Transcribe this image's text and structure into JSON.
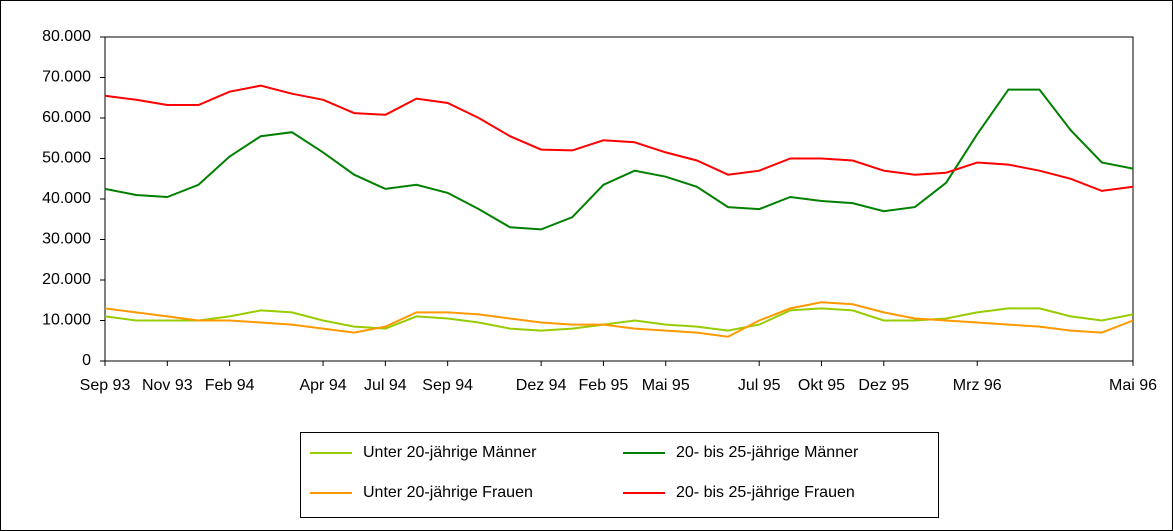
{
  "chart_data": {
    "type": "line",
    "categories": [
      "Sep 93",
      null,
      "Nov 93",
      null,
      "Feb 94",
      null,
      null,
      "Apr 94",
      null,
      "Jul 94",
      null,
      "Sep 94",
      null,
      null,
      "Dez 94",
      null,
      "Feb 95",
      null,
      "Mai 95",
      null,
      null,
      "Jul 95",
      null,
      "Okt 95",
      null,
      "Dez 95",
      null,
      null,
      "Mrz 96",
      null,
      null,
      null,
      null,
      "Mai 96"
    ],
    "ylim": [
      0,
      80000
    ],
    "yticks": [
      0,
      {
        "value": 10000,
        "label": "10.000"
      },
      {
        "value": 20000,
        "label": "20.000"
      },
      {
        "value": 30000,
        "label": "30.000"
      },
      {
        "value": 40000,
        "label": "40.000"
      },
      {
        "value": 50000,
        "label": "50.000"
      },
      {
        "value": 60000,
        "label": "60.000"
      },
      {
        "value": 70000,
        "label": "70.000"
      },
      {
        "value": 80000,
        "label": "80.000"
      }
    ],
    "grid": false,
    "series": [
      {
        "name": "Unter 20-jährige Männer",
        "color": "#99cc00",
        "values": [
          11000,
          10000,
          10000,
          10000,
          11000,
          12500,
          12000,
          10000,
          8500,
          8000,
          11000,
          10500,
          9500,
          8000,
          7500,
          8000,
          9000,
          10000,
          9000,
          8500,
          7500,
          9000,
          12500,
          13000,
          12500,
          10000,
          10000,
          10500,
          12000,
          13000,
          13000,
          11000,
          10000,
          11500
        ]
      },
      {
        "name": "20- bis 25-jährige Männer",
        "color": "#008000",
        "values": [
          42500,
          41000,
          40500,
          43500,
          50500,
          55500,
          56500,
          51500,
          46000,
          42500,
          43500,
          41500,
          37500,
          33000,
          32500,
          35500,
          43500,
          47000,
          45500,
          43000,
          38000,
          37500,
          40500,
          39500,
          39000,
          37000,
          38000,
          44000,
          56000,
          67000,
          67000,
          57000,
          49000,
          47500
        ]
      },
      {
        "name": "Unter 20-jährige Frauen",
        "color": "#ff9900",
        "values": [
          13000,
          12000,
          11000,
          10000,
          10000,
          9500,
          9000,
          8000,
          7000,
          8500,
          12000,
          12000,
          11500,
          10500,
          9500,
          9000,
          9000,
          8000,
          7500,
          7000,
          6000,
          10000,
          13000,
          14500,
          14000,
          12000,
          10500,
          10000,
          9500,
          9000,
          8500,
          7500,
          7000,
          10000
        ]
      },
      {
        "name": "20- bis 25-jährige Frauen",
        "color": "#ff0000",
        "values": [
          65500,
          64500,
          63200,
          63200,
          66500,
          68000,
          66000,
          64500,
          61200,
          60800,
          64800,
          63700,
          60000,
          55500,
          52200,
          52000,
          54500,
          54000,
          51500,
          49500,
          46000,
          47000,
          50000,
          50000,
          49500,
          47000,
          46000,
          46500,
          49000,
          48500,
          47000,
          45000,
          42000,
          43000
        ]
      }
    ]
  }
}
